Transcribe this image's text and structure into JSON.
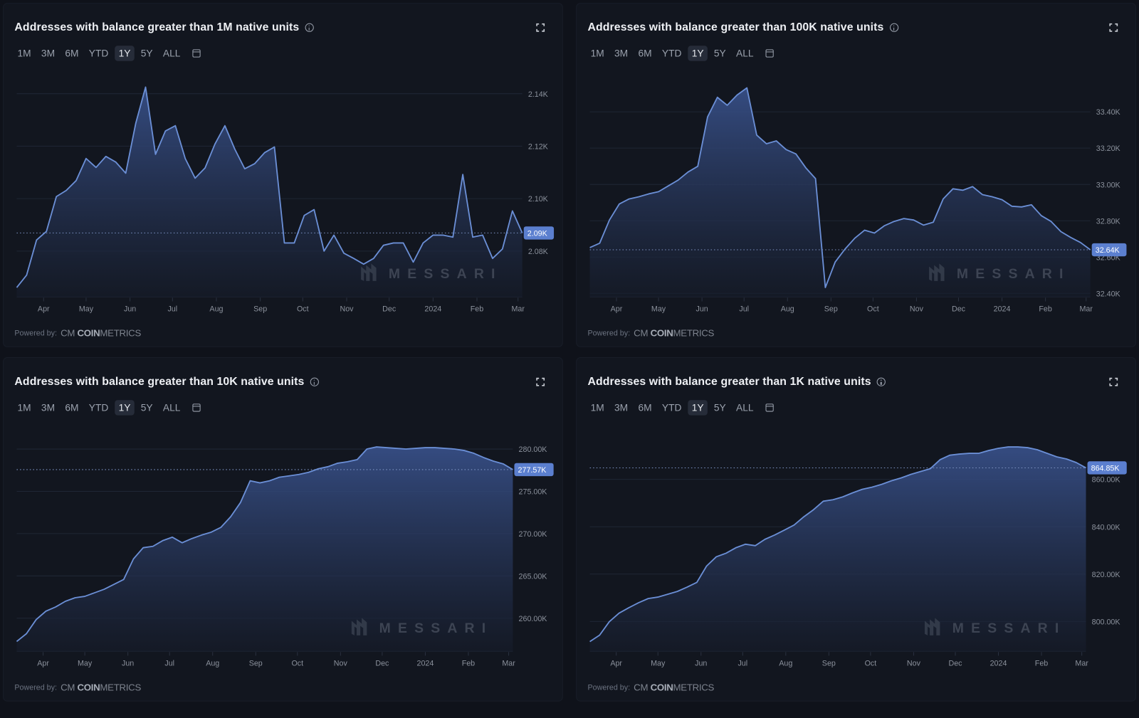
{
  "ranges": [
    "1M",
    "3M",
    "6M",
    "YTD",
    "1Y",
    "5Y",
    "ALL"
  ],
  "selected_range": "1Y",
  "powered_by": "Powered by:",
  "provider_logo": {
    "mark": "CM",
    "bold": "COIN",
    "light": "METRICS"
  },
  "watermark": "MESSARI",
  "colors": {
    "line": "#6b8fd6",
    "fill_top": "#3b5592",
    "badge": "#5b7fcf",
    "background": "#0f121a",
    "panel": "#12161f",
    "grid": "#1f2635"
  },
  "x_dates": [
    "2023-03-13",
    "2023-03-20",
    "2023-03-27",
    "2023-04-03",
    "2023-04-10",
    "2023-04-17",
    "2023-04-24",
    "2023-05-01",
    "2023-05-08",
    "2023-05-15",
    "2023-05-22",
    "2023-05-29",
    "2023-06-05",
    "2023-06-12",
    "2023-06-19",
    "2023-06-26",
    "2023-07-03",
    "2023-07-10",
    "2023-07-17",
    "2023-07-24",
    "2023-07-31",
    "2023-08-07",
    "2023-08-14",
    "2023-08-21",
    "2023-08-28",
    "2023-09-04",
    "2023-09-11",
    "2023-09-18",
    "2023-09-25",
    "2023-10-02",
    "2023-10-09",
    "2023-10-16",
    "2023-10-23",
    "2023-10-30",
    "2023-11-06",
    "2023-11-13",
    "2023-11-20",
    "2023-11-27",
    "2023-12-04",
    "2023-12-11",
    "2023-12-18",
    "2023-12-25",
    "2024-01-01",
    "2024-01-08",
    "2024-01-15",
    "2024-01-22",
    "2024-01-29",
    "2024-02-05",
    "2024-02-12",
    "2024-02-19",
    "2024-02-26",
    "2024-03-04"
  ],
  "x_ticks": [
    {
      "label": "Apr",
      "date": "2023-04-01"
    },
    {
      "label": "May",
      "date": "2023-05-01"
    },
    {
      "label": "Jun",
      "date": "2023-06-01"
    },
    {
      "label": "Jul",
      "date": "2023-07-01"
    },
    {
      "label": "Aug",
      "date": "2023-08-01"
    },
    {
      "label": "Sep",
      "date": "2023-09-01"
    },
    {
      "label": "Oct",
      "date": "2023-10-01"
    },
    {
      "label": "Nov",
      "date": "2023-11-01"
    },
    {
      "label": "Dec",
      "date": "2023-12-01"
    },
    {
      "label": "2024",
      "date": "2024-01-01"
    },
    {
      "label": "Feb",
      "date": "2024-02-01"
    },
    {
      "label": "Mar",
      "date": "2024-03-01"
    }
  ],
  "chart_data": [
    {
      "type": "area",
      "title": "Addresses with balance greater than 1M native units",
      "ylim": [
        2062.5,
        2145
      ],
      "y_ticks": [
        {
          "v": 2080,
          "label": "2.08K"
        },
        {
          "v": 2100,
          "label": "2.10K"
        },
        {
          "v": 2120,
          "label": "2.12K"
        },
        {
          "v": 2140,
          "label": "2.14K"
        }
      ],
      "grid": true,
      "last_value_label": "2.09K",
      "values": [
        2066.1,
        2070.8,
        2084.2,
        2087.5,
        2100.8,
        2103.1,
        2106.9,
        2115.3,
        2111.9,
        2116.1,
        2113.9,
        2109.7,
        2128.6,
        2142.5,
        2116.9,
        2125.8,
        2127.8,
        2115.3,
        2107.8,
        2111.7,
        2120.8,
        2127.8,
        2118.9,
        2111.4,
        2113.3,
        2117.5,
        2119.7,
        2083.1,
        2083.1,
        2093.6,
        2095.8,
        2080.0,
        2086.1,
        2079.2,
        2077.2,
        2075.0,
        2077.2,
        2082.2,
        2083.1,
        2083.1,
        2075.8,
        2083.1,
        2086.1,
        2086.1,
        2085.3,
        2109.2,
        2085.3,
        2086.1,
        2077.2,
        2080.8,
        2095.3,
        2086.9
      ]
    },
    {
      "type": "area",
      "title": "Addresses with balance greater than 100K native units",
      "ylim": [
        32380,
        33572
      ],
      "y_ticks": [
        {
          "v": 32400,
          "label": "32.40K"
        },
        {
          "v": 32600,
          "label": "32.60K"
        },
        {
          "v": 32800,
          "label": "32.80K"
        },
        {
          "v": 33000,
          "label": "33.00K"
        },
        {
          "v": 33200,
          "label": "33.20K"
        },
        {
          "v": 33400,
          "label": "33.40K"
        }
      ],
      "grid": true,
      "last_value_label": "32.64K",
      "values": [
        32652,
        32676,
        32804,
        32892,
        32920,
        32932,
        32948,
        32960,
        32992,
        33024,
        33068,
        33100,
        33372,
        33480,
        33436,
        33492,
        33532,
        33272,
        33224,
        33240,
        33192,
        33168,
        33092,
        33032,
        32432,
        32572,
        32644,
        32704,
        32748,
        32732,
        32772,
        32796,
        32812,
        32804,
        32776,
        32792,
        32920,
        32976,
        32968,
        32988,
        32944,
        32932,
        32916,
        32880,
        32876,
        32888,
        32828,
        32796,
        32740,
        32708,
        32680,
        32640
      ]
    },
    {
      "type": "area",
      "title": "Addresses with balance greater than 10K native units",
      "ylim": [
        256.08,
        281.67
      ],
      "y_ticks": [
        {
          "v": 260,
          "label": "260.00K"
        },
        {
          "v": 265,
          "label": "265.00K"
        },
        {
          "v": 270,
          "label": "270.00K"
        },
        {
          "v": 275,
          "label": "275.00K"
        },
        {
          "v": 280,
          "label": "280.00K"
        }
      ],
      "grid": true,
      "last_value_label": "277.57K",
      "values": [
        257.25,
        258.17,
        259.83,
        260.83,
        261.33,
        262.0,
        262.42,
        262.58,
        263.0,
        263.42,
        264.0,
        264.58,
        267.0,
        268.33,
        268.5,
        269.17,
        269.58,
        268.92,
        269.42,
        269.83,
        270.17,
        270.75,
        272.0,
        273.67,
        276.25,
        276.0,
        276.25,
        276.67,
        276.83,
        277.0,
        277.25,
        277.67,
        277.92,
        278.33,
        278.5,
        278.75,
        280.0,
        280.25,
        280.17,
        280.08,
        280.0,
        280.08,
        280.17,
        280.17,
        280.08,
        280.0,
        279.83,
        279.5,
        279.0,
        278.58,
        278.25,
        277.57
      ]
    },
    {
      "type": "area",
      "title": "Addresses with balance greater than 1K native units",
      "ylim": [
        787.4,
        878.75
      ],
      "y_ticks": [
        {
          "v": 800,
          "label": "800.00K"
        },
        {
          "v": 820,
          "label": "820.00K"
        },
        {
          "v": 840,
          "label": "840.00K"
        },
        {
          "v": 860,
          "label": "860.00K"
        }
      ],
      "grid": true,
      "last_value_label": "864.85K",
      "values": [
        791.5,
        794.2,
        799.9,
        803.5,
        805.8,
        807.9,
        809.7,
        810.3,
        811.5,
        812.7,
        814.5,
        816.5,
        823.4,
        827.3,
        828.8,
        831.1,
        832.6,
        832.0,
        834.7,
        836.5,
        838.6,
        840.7,
        844.2,
        847.2,
        850.8,
        851.4,
        852.6,
        854.3,
        855.8,
        856.7,
        857.9,
        859.4,
        860.6,
        862.1,
        863.3,
        864.5,
        868.3,
        870.2,
        870.7,
        871.0,
        871.0,
        872.2,
        873.1,
        873.7,
        873.7,
        873.4,
        872.5,
        871.0,
        869.5,
        868.6,
        867.1,
        864.85
      ]
    }
  ]
}
